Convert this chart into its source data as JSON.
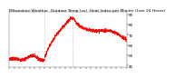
{
  "title": "Milwaukee Weather  Outdoor Temp (vs)  Heat Index per Minute (Last 24 Hours)",
  "line_color": "#ff0000",
  "background_color": "#ffffff",
  "vline_color": "#888888",
  "ylim": [
    38,
    92
  ],
  "yticks": [
    40,
    50,
    60,
    70,
    80,
    90
  ],
  "ytick_labels": [
    "40",
    "50",
    "60",
    "70",
    "80",
    "90"
  ],
  "vline_positions": [
    0.3,
    0.54
  ],
  "title_fontsize": 3.2,
  "tick_fontsize": 3.0,
  "line_width": 0.55,
  "num_points": 1440,
  "num_xticks": 24
}
